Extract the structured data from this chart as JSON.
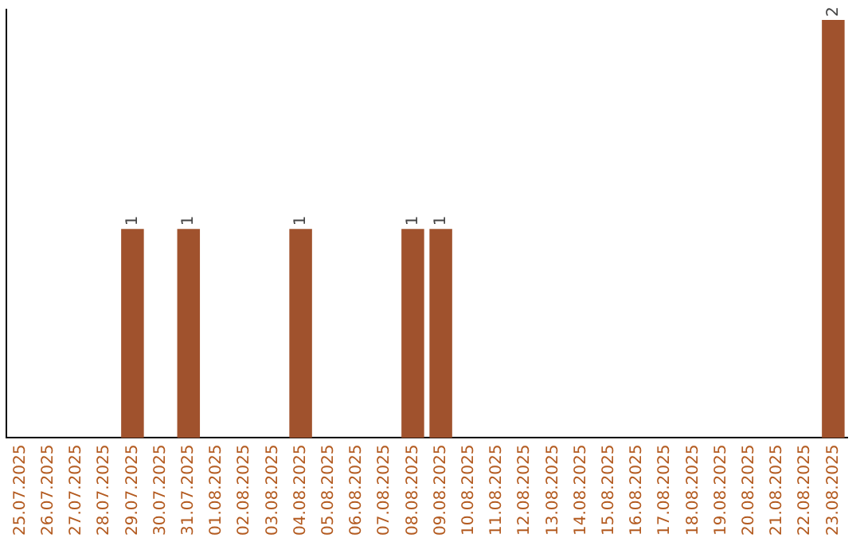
{
  "chart_data": {
    "type": "bar",
    "categories": [
      "25.07.2025",
      "26.07.2025",
      "27.07.2025",
      "28.07.2025",
      "29.07.2025",
      "30.07.2025",
      "31.07.2025",
      "01.08.2025",
      "02.08.2025",
      "03.08.2025",
      "04.08.2025",
      "05.08.2025",
      "06.08.2025",
      "07.08.2025",
      "08.08.2025",
      "09.08.2025",
      "10.08.2025",
      "11.08.2025",
      "12.08.2025",
      "13.08.2025",
      "14.08.2025",
      "15.08.2025",
      "16.08.2025",
      "17.08.2025",
      "18.08.2025",
      "19.08.2025",
      "20.08.2025",
      "21.08.2025",
      "22.08.2025",
      "23.08.2025"
    ],
    "values": [
      0,
      0,
      0,
      0,
      1,
      0,
      1,
      0,
      0,
      0,
      1,
      0,
      0,
      0,
      1,
      1,
      0,
      0,
      0,
      0,
      0,
      0,
      0,
      0,
      0,
      0,
      0,
      0,
      0,
      2
    ],
    "value_labels": [
      null,
      null,
      null,
      null,
      "1",
      null,
      "1",
      null,
      null,
      null,
      "1",
      null,
      null,
      null,
      "1",
      "1",
      null,
      null,
      null,
      null,
      null,
      null,
      null,
      null,
      null,
      null,
      null,
      null,
      null,
      "2"
    ],
    "color": "#a0522d",
    "ylim": [
      0,
      2.05
    ],
    "grid": false,
    "legend": false
  }
}
